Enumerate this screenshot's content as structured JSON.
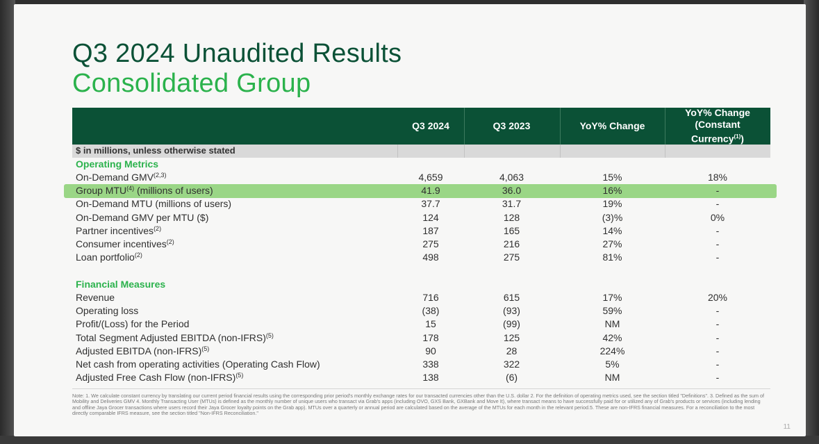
{
  "title_line1": "Q3 2024 Unaudited Results",
  "title_line2": "Consolidated Group",
  "columns": {
    "q3_2024": "Q3 2024",
    "q3_2023": "Q3 2023",
    "yoy": "YoY% Change",
    "yoy_cc_line1": "YoY% Change",
    "yoy_cc_line2": "(Constant",
    "yoy_cc_line3": "Currency",
    "yoy_cc_sup": "(1)",
    "yoy_cc_close": ")"
  },
  "units": "$ in millions, unless otherwise stated",
  "sections": {
    "operating": "Operating Metrics",
    "financial": "Financial Measures"
  },
  "operating_rows": [
    {
      "label": "On-Demand GMV",
      "sup": "(2,3)",
      "q3_2024": "4,659",
      "q3_2023": "4,063",
      "yoy": "15%",
      "yoy_cc": "18%"
    },
    {
      "label": "Group MTU",
      "sup": "(4)",
      "suffix": " (millions of users)",
      "q3_2024": "41.9",
      "q3_2023": "36.0",
      "yoy": "16%",
      "yoy_cc": "-"
    },
    {
      "label": "On-Demand MTU (millions of users)",
      "sup": "",
      "q3_2024": "37.7",
      "q3_2023": "31.7",
      "yoy": "19%",
      "yoy_cc": "-"
    },
    {
      "label": "On-Demand GMV per MTU ($)",
      "sup": "",
      "q3_2024": "124",
      "q3_2023": "128",
      "yoy": "(3)%",
      "yoy_cc": "0%"
    },
    {
      "label": "Partner incentives",
      "sup": "(2)",
      "q3_2024": "187",
      "q3_2023": "165",
      "yoy": "14%",
      "yoy_cc": "-"
    },
    {
      "label": "Consumer incentives",
      "sup": "(2)",
      "q3_2024": "275",
      "q3_2023": "216",
      "yoy": "27%",
      "yoy_cc": "-"
    },
    {
      "label": "Loan portfolio",
      "sup": "(2)",
      "q3_2024": "498",
      "q3_2023": "275",
      "yoy": "81%",
      "yoy_cc": "-"
    }
  ],
  "financial_rows": [
    {
      "label": "Revenue",
      "sup": "",
      "q3_2024": "716",
      "q3_2023": "615",
      "yoy": "17%",
      "yoy_cc": "20%"
    },
    {
      "label": "Operating loss",
      "sup": "",
      "q3_2024": "(38)",
      "q3_2023": "(93)",
      "yoy": "59%",
      "yoy_cc": "-"
    },
    {
      "label": "Profit/(Loss) for the Period",
      "sup": "",
      "q3_2024": "15",
      "q3_2023": "(99)",
      "yoy": "NM",
      "yoy_cc": "-"
    },
    {
      "label": "Total Segment Adjusted EBITDA (non-IFRS)",
      "sup": "(5)",
      "q3_2024": "178",
      "q3_2023": "125",
      "yoy": "42%",
      "yoy_cc": "-"
    },
    {
      "label": "Adjusted EBITDA (non-IFRS)",
      "sup": "(5)",
      "q3_2024": "90",
      "q3_2023": "28",
      "yoy": "224%",
      "yoy_cc": "-"
    },
    {
      "label": "Net cash from operating activities (Operating Cash Flow)",
      "sup": "",
      "q3_2024": "338",
      "q3_2023": "322",
      "yoy": "5%",
      "yoy_cc": "-"
    },
    {
      "label": "Adjusted Free Cash Flow (non-IFRS)",
      "sup": "(5)",
      "q3_2024": "138",
      "q3_2023": "(6)",
      "yoy": "NM",
      "yoy_cc": "-"
    }
  ],
  "footnote": "Note: 1. We calculate constant currency by translating our current period financial results using the corresponding prior period's monthly exchange rates for our transacted currencies other than the U.S. dollar 2. For the definition of operating metrics used, see the section titled \"Definitions\". 3. Defined as the sum of Mobility and Deliveries GMV 4. Monthly Transacting User (MTUs) is defined as the monthly number of unique users who transact via Grab's apps (including OVO, GXS Bank, GXBank and Move It), where transact means to have successfully paid for or utilized any of Grab's products or services (including lending and offline Jaya Grocer transactions where users record their Jaya Grocer loyalty points on the Grab app). MTUs over a quarterly or annual period are calculated based on the average of the MTUs for each month in the relevant period.5. These are non-IFRS financial measures. For a reconciliation to the most directly comparable IFRS measure, see the section titled \"Non-IFRS Reconciliation.\"",
  "page_number": "11",
  "colors": {
    "dark_green": "#0b5136",
    "bright_green": "#2bb24c",
    "highlight": "#8fd17a"
  }
}
